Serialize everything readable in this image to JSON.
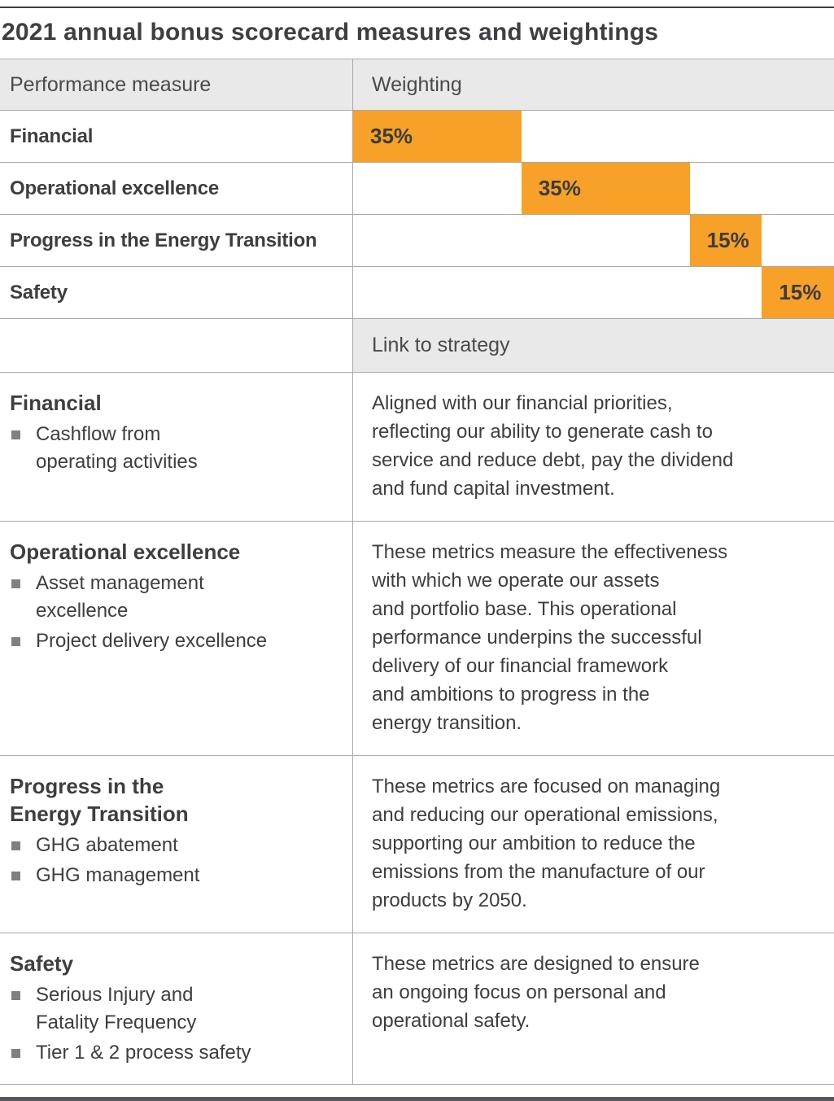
{
  "title": "2021 annual bonus scorecard measures and weightings",
  "table": {
    "performance_header": "Performance measure",
    "weighting_header": "Weighting",
    "link_header": "Link to strategy",
    "rows": [
      {
        "label": "Financial",
        "weight_label": "35%"
      },
      {
        "label": "Operational excellence",
        "weight_label": "35%"
      },
      {
        "label": "Progress in the Energy Transition",
        "weight_label": "15%"
      },
      {
        "label": "Safety",
        "weight_label": "15%"
      }
    ],
    "strategy": [
      {
        "heading": "Financial",
        "bullets": [
          "Cashflow from\noperating activities"
        ],
        "text": "Aligned with our financial priorities,\nreflecting our ability to generate cash to\nservice and reduce debt, pay the dividend\nand fund capital investment."
      },
      {
        "heading": "Operational excellence",
        "bullets": [
          "Asset management\nexcellence",
          "Project delivery excellence"
        ],
        "text": "These metrics measure the effectiveness\nwith which we operate our assets\nand portfolio base. This operational\nperformance underpins the successful\ndelivery of our financial framework\nand ambitions to progress in the\nenergy transition."
      },
      {
        "heading": "Progress in the\nEnergy Transition",
        "bullets": [
          "GHG abatement",
          "GHG management"
        ],
        "text": "These metrics are focused on managing\nand reducing our operational emissions,\nsupporting our ambition to reduce the\nemissions from the manufacture of our\nproducts by 2050."
      },
      {
        "heading": "Safety",
        "bullets": [
          "Serious Injury and\nFatality Frequency",
          "Tier 1 & 2 process safety"
        ],
        "text": "These metrics are designed to ensure\nan ongoing focus on personal and\noperational safety."
      }
    ]
  },
  "chart_data": {
    "type": "bar",
    "title": "2021 annual bonus scorecard measures and weightings",
    "categories": [
      "Financial",
      "Operational excellence",
      "Progress in the Energy Transition",
      "Safety"
    ],
    "values": [
      35,
      35,
      15,
      15
    ],
    "unit": "%",
    "xlim": [
      0,
      100
    ],
    "layout": "horizontal cascading stacked bars; each bar offset by cumulative sum of previous values, one row per category",
    "bar_color": "#F7A128",
    "value_labels": [
      "35%",
      "35%",
      "15%",
      "15%"
    ]
  },
  "colors": {
    "accent_orange": "#F7A128",
    "header_bg": "#E9E9E9",
    "text": "#3E3E3E",
    "grid_line": "#A9A9A9",
    "rule_dark": "#55575B"
  }
}
